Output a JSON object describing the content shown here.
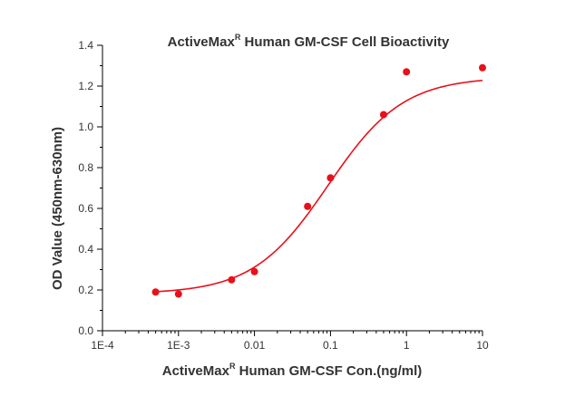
{
  "chart_data": {
    "type": "scatter",
    "title": {
      "text": "ActiveMax",
      "sup": "R",
      "rest": " Human GM-CSF Cell Bioactivity"
    },
    "xlabel": {
      "text": "ActiveMax",
      "sup": "R",
      "rest": " Human GM-CSF Con.(ng/ml)"
    },
    "ylabel": "OD Value (450nm-630nm)",
    "x_scale": "log",
    "xlim": [
      0.0001,
      10
    ],
    "ylim": [
      0.0,
      1.4
    ],
    "x_ticks": [
      {
        "value": 0.0001,
        "label": "1E-4"
      },
      {
        "value": 0.001,
        "label": "1E-3"
      },
      {
        "value": 0.01,
        "label": "0.01"
      },
      {
        "value": 0.1,
        "label": "0.1"
      },
      {
        "value": 1,
        "label": "1"
      },
      {
        "value": 10,
        "label": "10"
      }
    ],
    "y_ticks": [
      {
        "value": 0.0,
        "label": "0.0"
      },
      {
        "value": 0.2,
        "label": "0.2"
      },
      {
        "value": 0.4,
        "label": "0.4"
      },
      {
        "value": 0.6,
        "label": "0.6"
      },
      {
        "value": 0.8,
        "label": "0.8"
      },
      {
        "value": 1.0,
        "label": "1.0"
      },
      {
        "value": 1.2,
        "label": "1.2"
      },
      {
        "value": 1.4,
        "label": "1.4"
      }
    ],
    "grid": false,
    "series": [
      {
        "marker_color": "#e8101a",
        "points": [
          {
            "x": 0.0005,
            "y": 0.19
          },
          {
            "x": 0.001,
            "y": 0.18
          },
          {
            "x": 0.005,
            "y": 0.25
          },
          {
            "x": 0.01,
            "y": 0.29
          },
          {
            "x": 0.05,
            "y": 0.61
          },
          {
            "x": 0.1,
            "y": 0.75
          },
          {
            "x": 0.5,
            "y": 1.06
          },
          {
            "x": 1,
            "y": 1.27
          },
          {
            "x": 10,
            "y": 1.29
          }
        ],
        "fit": {
          "model": "4PL",
          "bottom": 0.181,
          "top": 1.245,
          "ec50": 0.093,
          "hill": 0.88,
          "x_range": [
            0.0005,
            10
          ],
          "line_color": "#e8101a"
        }
      }
    ]
  }
}
